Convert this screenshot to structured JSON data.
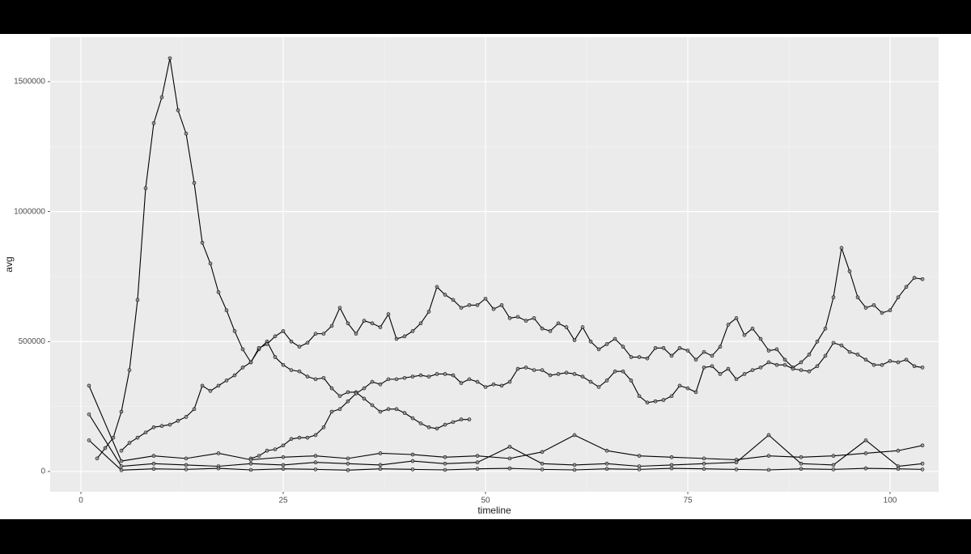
{
  "chart_data": {
    "type": "line",
    "x_label": "timeline",
    "y_label": "avg",
    "xlim": [
      -3.8,
      106
    ],
    "ylim": [
      -78000,
      1671000
    ],
    "xticks": [
      0,
      25,
      50,
      75,
      100
    ],
    "yticks": [
      0,
      500000,
      1000000,
      1500000
    ],
    "grid": true,
    "series": [
      {
        "color": "#000000",
        "x": [
          2,
          3,
          4,
          5,
          6,
          7,
          8,
          9,
          10,
          11,
          12,
          13,
          14,
          15,
          16,
          17,
          18,
          19,
          20,
          21,
          22,
          23,
          24,
          25,
          26,
          27,
          28,
          29,
          30,
          31,
          32,
          33,
          34,
          35,
          36,
          37,
          38,
          39,
          40,
          41,
          42,
          43,
          44,
          45,
          46,
          47,
          48
        ],
        "values": [
          50000,
          90000,
          130000,
          230000,
          390000,
          660000,
          1090000,
          1340000,
          1440000,
          1590000,
          1390000,
          1300000,
          1110000,
          880000,
          800000,
          690000,
          620000,
          540000,
          470000,
          420000,
          470000,
          500000,
          440000,
          410000,
          390000,
          385000,
          365000,
          355000,
          360000,
          320000,
          290000,
          305000,
          305000,
          280000,
          255000,
          230000,
          240000,
          240000,
          225000,
          205000,
          185000,
          170000,
          165000,
          180000,
          190000,
          200000,
          200000
        ]
      },
      {
        "color": "#000000",
        "x": [
          5,
          6,
          7,
          8,
          9,
          10,
          11,
          12,
          13,
          14,
          15,
          16,
          17,
          18,
          19,
          20,
          21,
          22,
          23,
          24,
          25,
          26,
          27,
          28,
          29,
          30,
          31,
          32,
          33,
          34,
          35,
          36,
          37,
          38,
          39,
          40,
          41,
          42,
          43,
          44,
          45,
          46,
          47,
          48,
          49,
          50,
          51,
          52,
          53,
          54,
          55,
          56,
          57,
          58,
          59,
          60,
          61,
          62,
          63,
          64,
          65,
          66,
          67,
          68,
          69,
          70,
          71,
          72,
          73,
          74,
          75,
          76,
          77,
          78,
          79,
          80,
          81,
          82,
          83,
          84,
          85,
          86,
          87,
          88,
          89,
          90,
          91,
          92,
          93,
          94,
          95,
          96,
          97,
          98,
          99,
          100,
          101,
          102,
          103,
          104
        ],
        "values": [
          80000,
          110000,
          130000,
          150000,
          170000,
          175000,
          180000,
          195000,
          210000,
          240000,
          330000,
          310000,
          330000,
          350000,
          370000,
          400000,
          420000,
          475000,
          490000,
          520000,
          540000,
          500000,
          480000,
          495000,
          530000,
          530000,
          560000,
          630000,
          570000,
          530000,
          580000,
          570000,
          555000,
          605000,
          510000,
          520000,
          540000,
          570000,
          615000,
          710000,
          680000,
          660000,
          630000,
          640000,
          640000,
          665000,
          625000,
          640000,
          590000,
          595000,
          580000,
          590000,
          550000,
          540000,
          570000,
          555000,
          505000,
          555000,
          500000,
          470000,
          490000,
          510000,
          480000,
          440000,
          440000,
          435000,
          475000,
          475000,
          445000,
          475000,
          465000,
          430000,
          460000,
          445000,
          480000,
          565000,
          590000,
          525000,
          550000,
          510000,
          465000,
          470000,
          430000,
          400000,
          420000,
          450000,
          500000,
          550000,
          670000,
          860000,
          770000,
          670000,
          630000,
          640000,
          610000,
          620000,
          670000,
          710000,
          745000,
          740000
        ]
      },
      {
        "color": "#000000",
        "x": [
          21,
          22,
          23,
          24,
          25,
          26,
          27,
          28,
          29,
          30,
          31,
          32,
          33,
          34,
          35,
          36,
          37,
          38,
          39,
          40,
          41,
          42,
          43,
          44,
          45,
          46,
          47,
          48,
          49,
          50,
          51,
          52,
          53,
          54,
          55,
          56,
          57,
          58,
          59,
          60,
          61,
          62,
          63,
          64,
          65,
          66,
          67,
          68,
          69,
          70,
          71,
          72,
          73,
          74,
          75,
          76,
          77,
          78,
          79,
          80,
          81,
          82,
          83,
          84,
          85,
          86,
          87,
          88,
          89,
          90,
          91,
          92,
          93,
          94,
          95,
          96,
          97,
          98,
          99,
          100,
          101,
          102,
          103,
          104
        ],
        "values": [
          50000,
          60000,
          80000,
          85000,
          100000,
          125000,
          130000,
          130000,
          140000,
          170000,
          230000,
          240000,
          270000,
          300000,
          320000,
          345000,
          335000,
          355000,
          355000,
          360000,
          365000,
          370000,
          365000,
          375000,
          375000,
          370000,
          340000,
          355000,
          345000,
          325000,
          335000,
          330000,
          345000,
          395000,
          400000,
          390000,
          390000,
          370000,
          375000,
          380000,
          375000,
          365000,
          345000,
          325000,
          350000,
          385000,
          385000,
          350000,
          290000,
          265000,
          270000,
          275000,
          290000,
          330000,
          320000,
          305000,
          400000,
          405000,
          375000,
          395000,
          355000,
          375000,
          390000,
          400000,
          420000,
          410000,
          410000,
          395000,
          390000,
          385000,
          405000,
          445000,
          495000,
          485000,
          460000,
          450000,
          430000,
          410000,
          410000,
          425000,
          420000,
          430000,
          405000,
          400000
        ]
      },
      {
        "color": "#000000",
        "x": [
          1,
          5,
          9,
          13,
          17,
          21,
          25,
          29,
          33,
          37,
          41,
          45,
          49,
          53,
          57,
          61,
          65,
          69,
          73,
          77,
          81,
          85,
          89,
          93,
          97,
          101,
          104
        ],
        "values": [
          330000,
          40000,
          60000,
          50000,
          70000,
          45000,
          55000,
          60000,
          50000,
          70000,
          65000,
          55000,
          60000,
          50000,
          75000,
          140000,
          80000,
          60000,
          55000,
          50000,
          45000,
          60000,
          55000,
          60000,
          70000,
          80000,
          100000
        ]
      },
      {
        "color": "#000000",
        "x": [
          1,
          5,
          9,
          13,
          17,
          21,
          25,
          29,
          33,
          37,
          41,
          45,
          49,
          53,
          57,
          61,
          65,
          69,
          73,
          77,
          81,
          85,
          89,
          93,
          97,
          101,
          104
        ],
        "values": [
          220000,
          20000,
          30000,
          25000,
          20000,
          30000,
          25000,
          35000,
          30000,
          25000,
          40000,
          30000,
          35000,
          95000,
          30000,
          25000,
          30000,
          20000,
          25000,
          30000,
          35000,
          140000,
          30000,
          25000,
          120000,
          20000,
          30000
        ]
      },
      {
        "color": "#000000",
        "x": [
          1,
          5,
          9,
          13,
          17,
          21,
          25,
          29,
          33,
          37,
          41,
          45,
          49,
          53,
          57,
          61,
          65,
          69,
          73,
          77,
          81,
          85,
          89,
          93,
          97,
          101,
          104
        ],
        "values": [
          120000,
          5000,
          10000,
          8000,
          12000,
          6000,
          10000,
          8000,
          5000,
          10000,
          8000,
          6000,
          10000,
          12000,
          8000,
          6000,
          10000,
          8000,
          12000,
          10000,
          8000,
          6000,
          10000,
          8000,
          12000,
          10000,
          8000
        ]
      }
    ]
  }
}
